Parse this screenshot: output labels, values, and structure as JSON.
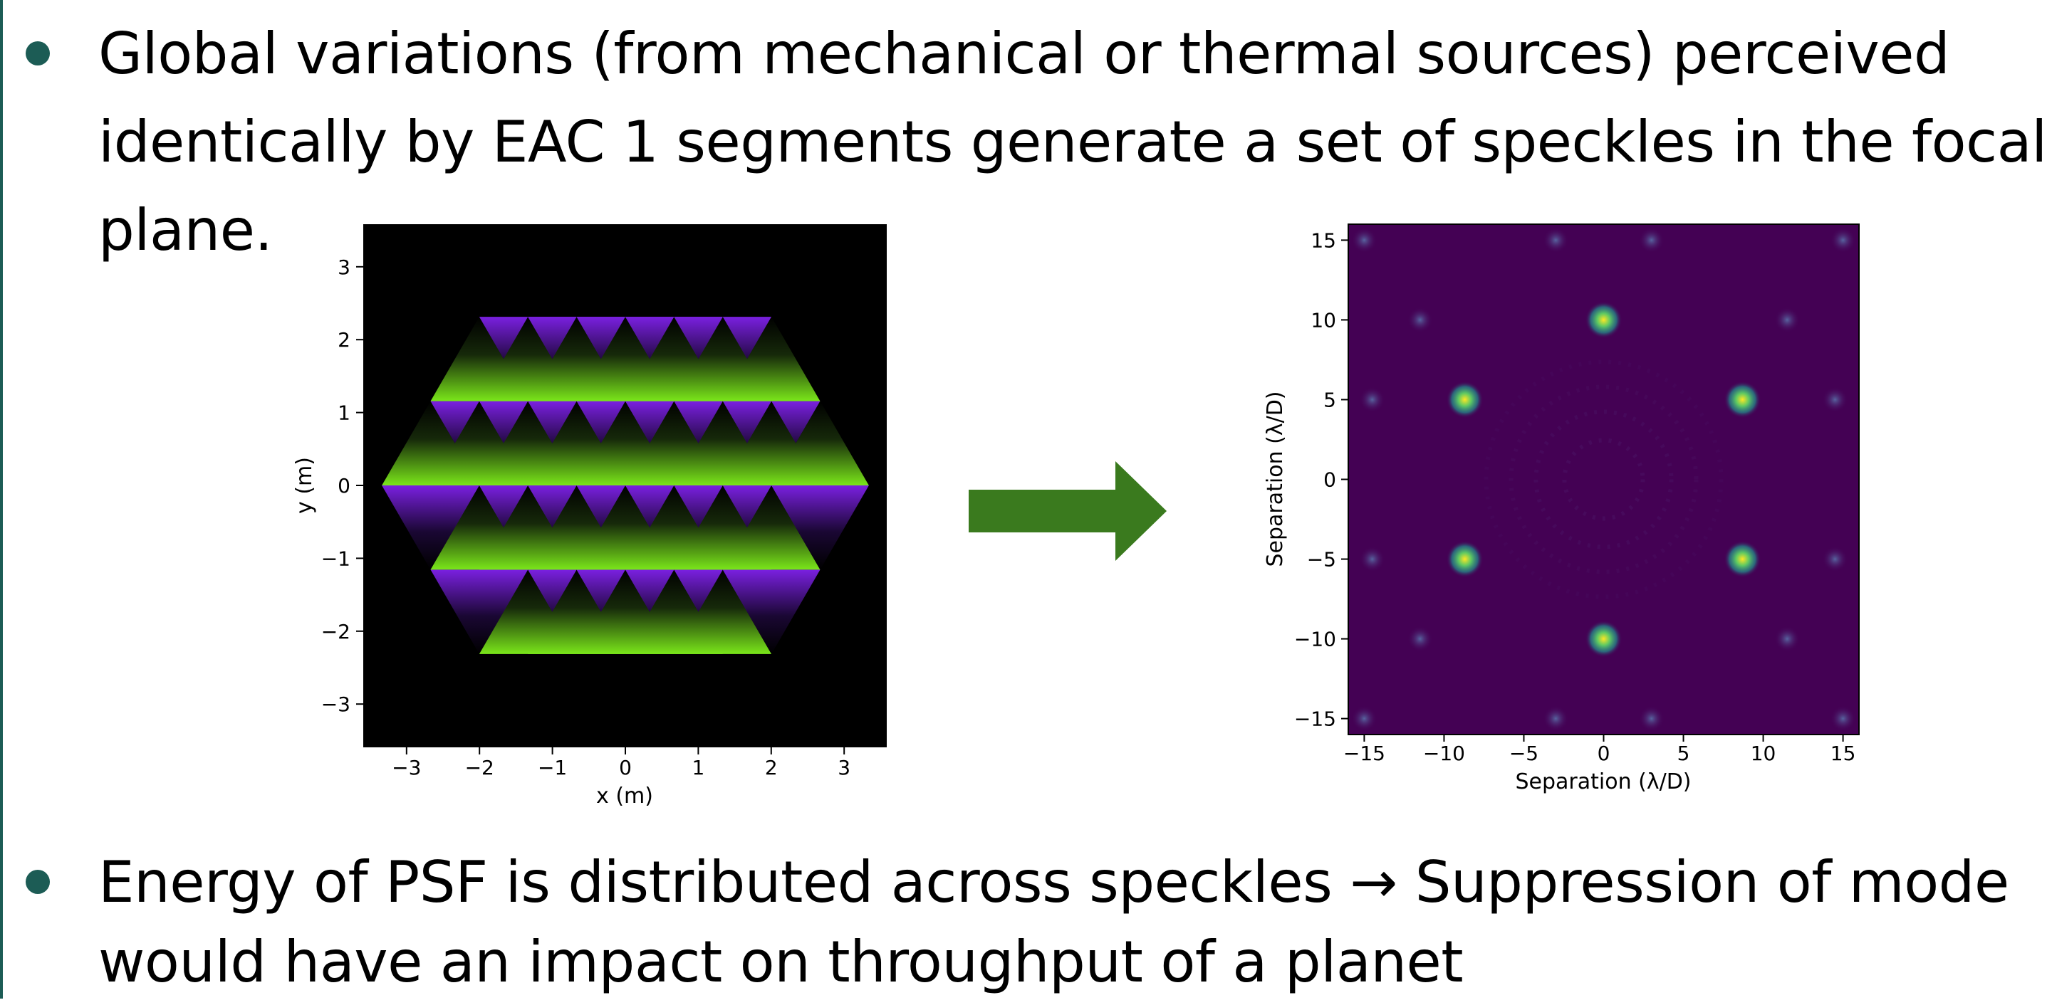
{
  "bullets": [
    {
      "lines": [
        "Global variations (from mechanical or thermal sources) perceived",
        "identically by EAC 1 segments generate a set of speckles in the focal",
        "plane."
      ]
    },
    {
      "lines": [
        "Energy of PSF is distributed across speckles → Suppression of mode",
        "would have an impact on throughput of a planet"
      ]
    }
  ],
  "left_plot": {
    "xlabel": "x (m)",
    "ylabel": "y (m)",
    "xticks": [
      "−3",
      "−2",
      "−1",
      "0",
      "1",
      "2",
      "3"
    ],
    "yticks": [
      "3",
      "2",
      "1",
      "0",
      "−1",
      "−2",
      "−3"
    ],
    "colors": {
      "bright": "#7ae61a",
      "dim": "#7a20e0",
      "background": "#000000"
    }
  },
  "arrow": {
    "color": "#3a7a1e",
    "direction": "right"
  },
  "right_plot": {
    "xlabel": "Separation (λ/D)",
    "ylabel": "Separation (λ/D)",
    "xticks": [
      "−15",
      "−10",
      "−5",
      "0",
      "5",
      "10",
      "15"
    ],
    "yticks": [
      "15",
      "10",
      "5",
      "0",
      "−5",
      "−10",
      "−15"
    ],
    "colors": {
      "background": "#440154",
      "speckle": "#fde725"
    }
  },
  "chart_data": {
    "type": "heatmap",
    "xlabel": "Separation (λ/D)",
    "ylabel": "Separation (λ/D)",
    "xlim": [
      -16,
      16
    ],
    "ylim": [
      -16,
      16
    ],
    "bright_speckles": [
      {
        "x": 0,
        "y": 10
      },
      {
        "x": -8.7,
        "y": 5
      },
      {
        "x": 8.7,
        "y": 5
      },
      {
        "x": -8.7,
        "y": -5
      },
      {
        "x": 8.7,
        "y": -5
      },
      {
        "x": 0,
        "y": -10
      }
    ],
    "faint_speckles": [
      {
        "x": -15,
        "y": 15
      },
      {
        "x": -3,
        "y": 15
      },
      {
        "x": 3,
        "y": 15
      },
      {
        "x": 15,
        "y": 15
      },
      {
        "x": -11.5,
        "y": 10
      },
      {
        "x": 11.5,
        "y": 10
      },
      {
        "x": -14.5,
        "y": 5
      },
      {
        "x": 14.5,
        "y": 5
      },
      {
        "x": -14.5,
        "y": -5
      },
      {
        "x": 14.5,
        "y": -5
      },
      {
        "x": -11.5,
        "y": -10
      },
      {
        "x": 11.5,
        "y": -10
      },
      {
        "x": -15,
        "y": -15
      },
      {
        "x": -3,
        "y": -15
      },
      {
        "x": 3,
        "y": -15
      },
      {
        "x": 15,
        "y": -15
      }
    ]
  }
}
